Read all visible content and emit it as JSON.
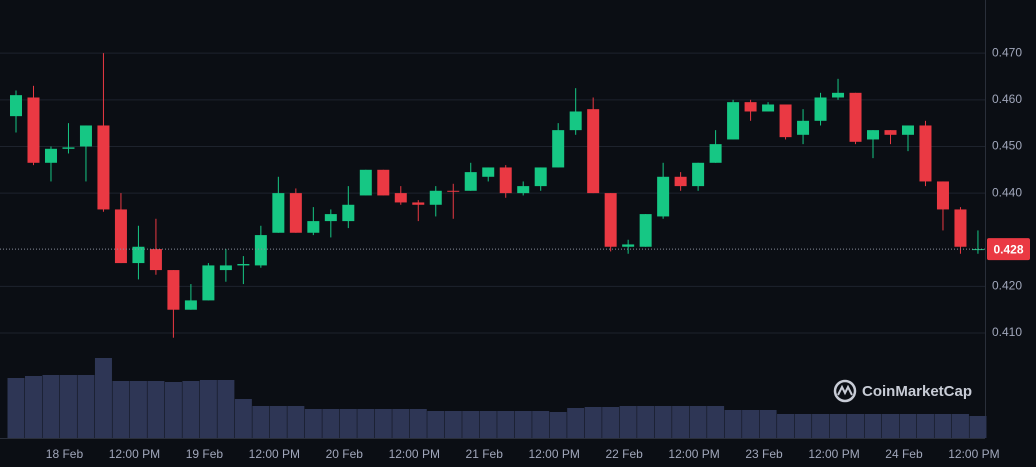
{
  "chart_data": {
    "type": "candlestick",
    "watermark": "CoinMarketCap",
    "categories": [
      null,
      null,
      null,
      "18 Feb",
      null,
      null,
      null,
      "12:00 PM",
      null,
      null,
      null,
      "19 Feb",
      null,
      null,
      null,
      "12:00 PM",
      null,
      null,
      null,
      "20 Feb",
      null,
      null,
      null,
      "12:00 PM",
      null,
      null,
      null,
      "21 Feb",
      null,
      null,
      null,
      "12:00 PM",
      null,
      null,
      null,
      "22 Feb",
      null,
      null,
      null,
      "12:00 PM",
      null,
      null,
      null,
      "23 Feb",
      null,
      null,
      null,
      "12:00 PM",
      null,
      null,
      null,
      "24 Feb",
      null,
      null,
      null,
      "12:00 PM"
    ],
    "open": [
      0.4565,
      0.4605,
      0.4465,
      0.4495,
      0.45,
      0.4545,
      0.4365,
      0.425,
      0.428,
      0.4235,
      0.415,
      0.417,
      0.4235,
      0.4245,
      0.4245,
      0.4315,
      0.44,
      0.4315,
      0.434,
      0.434,
      0.4395,
      0.445,
      0.44,
      0.438,
      0.4375,
      0.4405,
      0.4405,
      0.4435,
      0.4455,
      0.44,
      0.4415,
      0.4455,
      0.4535,
      0.458,
      0.44,
      0.4285,
      0.4285,
      0.435,
      0.4435,
      0.4415,
      0.4465,
      0.4515,
      0.4595,
      0.4575,
      0.459,
      0.4525,
      0.4555,
      0.4605,
      0.4615,
      0.4515,
      0.4535,
      0.4525,
      0.4545,
      0.4425,
      0.4365,
      0.428
    ],
    "high": [
      0.462,
      0.463,
      0.45,
      0.455,
      0.4545,
      0.47,
      0.44,
      0.433,
      0.4345,
      0.4235,
      0.4205,
      0.425,
      0.428,
      0.4265,
      0.433,
      0.4435,
      0.441,
      0.437,
      0.4365,
      0.4415,
      0.445,
      0.445,
      0.4415,
      0.4385,
      0.4415,
      0.442,
      0.4465,
      0.4455,
      0.446,
      0.4425,
      0.4455,
      0.455,
      0.4625,
      0.4605,
      0.44,
      0.43,
      0.4355,
      0.4465,
      0.4445,
      0.4465,
      0.4535,
      0.46,
      0.46,
      0.4595,
      0.459,
      0.458,
      0.4615,
      0.4645,
      0.4615,
      0.4535,
      0.4535,
      0.4545,
      0.4555,
      0.4425,
      0.437,
      0.432
    ],
    "low": [
      0.453,
      0.446,
      0.4425,
      0.4485,
      0.4425,
      0.436,
      0.425,
      0.4215,
      0.4225,
      0.409,
      0.415,
      0.417,
      0.421,
      0.4205,
      0.424,
      0.4315,
      0.4315,
      0.431,
      0.4305,
      0.4325,
      0.4395,
      0.4395,
      0.4375,
      0.434,
      0.435,
      0.4345,
      0.4405,
      0.4425,
      0.439,
      0.4395,
      0.4405,
      0.4455,
      0.4525,
      0.44,
      0.4275,
      0.427,
      0.4285,
      0.4345,
      0.4405,
      0.4405,
      0.4465,
      0.4515,
      0.4555,
      0.4575,
      0.4515,
      0.4505,
      0.4545,
      0.46,
      0.4505,
      0.4475,
      0.4505,
      0.449,
      0.4415,
      0.432,
      0.427,
      0.427
    ],
    "close": [
      0.461,
      0.4465,
      0.4495,
      0.4498,
      0.4545,
      0.4365,
      0.425,
      0.4285,
      0.4235,
      0.415,
      0.417,
      0.4245,
      0.4245,
      0.4248,
      0.431,
      0.44,
      0.4315,
      0.434,
      0.4355,
      0.4375,
      0.445,
      0.4395,
      0.438,
      0.4375,
      0.4405,
      0.4403,
      0.4445,
      0.4455,
      0.44,
      0.4415,
      0.4455,
      0.4535,
      0.4575,
      0.44,
      0.4285,
      0.429,
      0.4355,
      0.4435,
      0.4415,
      0.4465,
      0.4505,
      0.4595,
      0.4575,
      0.459,
      0.452,
      0.4555,
      0.4605,
      0.4615,
      0.451,
      0.4535,
      0.4525,
      0.4545,
      0.4425,
      0.4365,
      0.4285,
      0.428
    ],
    "volume": [
      60,
      62,
      63,
      63,
      63,
      80,
      57,
      57,
      57,
      56,
      57,
      58,
      58,
      39,
      32,
      32,
      32,
      29,
      29,
      29,
      29,
      29,
      29,
      29,
      27,
      27,
      27,
      27,
      27,
      27,
      27,
      26,
      30,
      31,
      31,
      32,
      32,
      32,
      32,
      32,
      32,
      28,
      28,
      28,
      24,
      24,
      24,
      24,
      24,
      24,
      24,
      24,
      24,
      24,
      24,
      22
    ],
    "up_color": "#16c784",
    "down_color": "#ea3943",
    "volume_color": "#2e3655",
    "ylim": [
      0.3875,
      0.4814
    ],
    "yticks": [
      {
        "value": 0.41,
        "label": "0.410"
      },
      {
        "value": 0.42,
        "label": "0.420"
      },
      {
        "value": 0.44,
        "label": "0.440"
      },
      {
        "value": 0.45,
        "label": "0.450"
      },
      {
        "value": 0.46,
        "label": "0.460"
      },
      {
        "value": 0.47,
        "label": "0.470"
      }
    ],
    "grid": true,
    "last_price": 0.428
  }
}
